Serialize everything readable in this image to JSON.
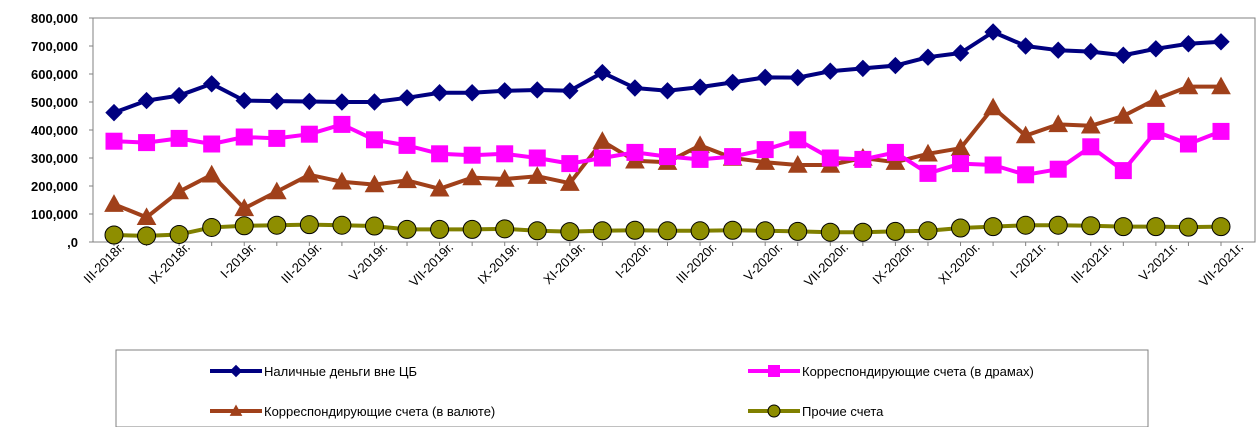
{
  "chart_data": {
    "type": "line",
    "title": "",
    "xlabel": "",
    "ylabel": "",
    "ylim": [
      0,
      800000
    ],
    "y_ticks": [
      "800,000",
      "700,000",
      "600,000",
      "500,000",
      "400,000",
      "300,000",
      "200,000",
      "100,000",
      ",0"
    ],
    "grid": false,
    "legend_position": "bottom",
    "x_tick_labels": [
      "III-2018г.",
      "IX-2018г.",
      "I-2019г.",
      "III-2019г.",
      "V-2019г.",
      "VII-2019г.",
      "IX-2019г.",
      "XI-2019г.",
      "I-2020г.",
      "III-2020г.",
      "V-2020г.",
      "VII-2020г.",
      "IX-2020г.",
      "XI-2020г.",
      "I-2021г.",
      "III-2021г.",
      "V-2021г.",
      "VII-2021г."
    ],
    "series": [
      {
        "name": "Наличные деньги вне ЦБ",
        "color": "#000080",
        "marker": "diamond",
        "values": [
          462000,
          505000,
          523000,
          565000,
          505000,
          503000,
          502000,
          500000,
          500000,
          515000,
          533000,
          533000,
          540000,
          543000,
          540000,
          605000,
          550000,
          540000,
          553000,
          570000,
          588000,
          587000,
          610000,
          620000,
          630000,
          660000,
          675000,
          750000,
          700000,
          685000,
          680000,
          667000,
          690000,
          708000,
          715000
        ]
      },
      {
        "name": "Корреспондирующие счета (в драмах)",
        "color": "#FF00FF",
        "marker": "square",
        "values": [
          360000,
          355000,
          370000,
          350000,
          375000,
          370000,
          385000,
          420000,
          365000,
          345000,
          315000,
          310000,
          315000,
          300000,
          280000,
          300000,
          320000,
          305000,
          295000,
          305000,
          330000,
          365000,
          300000,
          295000,
          320000,
          245000,
          280000,
          275000,
          240000,
          260000,
          340000,
          255000,
          395000,
          350000,
          395000
        ]
      },
      {
        "name": "Корреспондирующие счета (в валюте)",
        "color": "#A0401A",
        "marker": "triangle",
        "values": [
          135000,
          88000,
          180000,
          240000,
          120000,
          180000,
          240000,
          215000,
          205000,
          220000,
          190000,
          230000,
          225000,
          235000,
          210000,
          360000,
          290000,
          285000,
          345000,
          300000,
          285000,
          275000,
          275000,
          300000,
          285000,
          315000,
          335000,
          480000,
          380000,
          420000,
          415000,
          450000,
          510000,
          555000,
          555000
        ]
      },
      {
        "name": "Прочие счета",
        "color": "#808000",
        "marker_fill": "#8E8E00",
        "marker": "circle",
        "values": [
          25000,
          22000,
          27000,
          52000,
          58000,
          60000,
          62000,
          60000,
          57000,
          45000,
          45000,
          45000,
          47000,
          40000,
          37000,
          40000,
          42000,
          40000,
          40000,
          42000,
          40000,
          38000,
          35000,
          35000,
          38000,
          40000,
          50000,
          55000,
          60000,
          60000,
          58000,
          55000,
          55000,
          53000,
          55000
        ]
      }
    ]
  }
}
